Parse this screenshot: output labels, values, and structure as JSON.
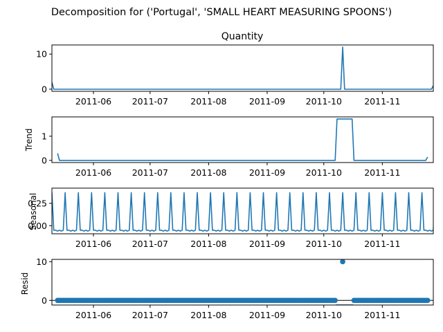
{
  "figure_title": "Decomposition for ('Portugal', 'SMALL HEART MEASURING SPOONS')",
  "colors": {
    "line": "#1f77b4",
    "axis": "#000000",
    "text": "#000000",
    "background": "#ffffff"
  },
  "chart_data": [
    {
      "type": "line",
      "name": "observed",
      "title": "Quantity",
      "ylabel": "",
      "xlim": [
        "2011-05-10",
        "2011-11-28"
      ],
      "ylim": [
        -0.6,
        12.6
      ],
      "yticks": [
        0,
        10
      ],
      "ytick_labels": [
        "0",
        "10"
      ],
      "xticks": [
        "2011-06-01",
        "2011-07-01",
        "2011-08-01",
        "2011-09-01",
        "2011-10-01",
        "2011-11-01"
      ],
      "xtick_labels": [
        "2011-06",
        "2011-07",
        "2011-08",
        "2011-09",
        "2011-10",
        "2011-11"
      ],
      "series": [
        {
          "name": "Quantity",
          "x": [
            "2011-05-10",
            "2011-05-11",
            "2011-10-10",
            "2011-10-11",
            "2011-10-12",
            "2011-11-27",
            "2011-11-28"
          ],
          "values": [
            2,
            0,
            0,
            12,
            0,
            0,
            1
          ]
        }
      ]
    },
    {
      "type": "line",
      "name": "trend",
      "title": "",
      "ylabel": "Trend",
      "xlim": [
        "2011-05-10",
        "2011-11-28"
      ],
      "ylim": [
        -0.09,
        1.8
      ],
      "yticks": [
        0,
        1
      ],
      "ytick_labels": [
        "0",
        "1"
      ],
      "xticks": [
        "2011-06-01",
        "2011-07-01",
        "2011-08-01",
        "2011-09-01",
        "2011-10-01",
        "2011-11-01"
      ],
      "xtick_labels": [
        "2011-06",
        "2011-07",
        "2011-08",
        "2011-09",
        "2011-10",
        "2011-11"
      ],
      "series": [
        {
          "name": "Trend",
          "x": [
            "2011-05-13",
            "2011-05-14",
            "2011-10-07",
            "2011-10-08",
            "2011-10-16",
            "2011-10-17",
            "2011-11-24",
            "2011-11-25"
          ],
          "values": [
            0.29,
            0,
            0,
            1.71,
            1.71,
            0,
            0,
            0.14
          ]
        }
      ]
    },
    {
      "type": "line",
      "name": "seasonal",
      "title": "",
      "ylabel": "Seasonal",
      "xlim": [
        "2011-05-10",
        "2011-11-28"
      ],
      "ylim": [
        -0.09,
        0.42
      ],
      "yticks": [
        0.0,
        0.25
      ],
      "ytick_labels": [
        "0.00",
        "0.25"
      ],
      "xticks": [
        "2011-06-01",
        "2011-07-01",
        "2011-08-01",
        "2011-09-01",
        "2011-10-01",
        "2011-11-01"
      ],
      "xtick_labels": [
        "2011-06",
        "2011-07",
        "2011-08",
        "2011-09",
        "2011-10",
        "2011-11"
      ],
      "period_days": 7,
      "first_peak": "2011-05-17",
      "peak_value": 0.37,
      "base_values": [
        -0.05,
        -0.05,
        -0.06,
        -0.05,
        -0.06,
        -0.05
      ],
      "series": [
        {
          "name": "Seasonal"
        }
      ]
    },
    {
      "type": "scatter",
      "name": "resid",
      "title": "",
      "ylabel": "Resid",
      "xlim": [
        "2011-05-10",
        "2011-11-28"
      ],
      "ylim": [
        -1.2,
        10.6
      ],
      "yticks": [
        0,
        10
      ],
      "ytick_labels": [
        "0",
        "10"
      ],
      "xticks": [
        "2011-06-01",
        "2011-07-01",
        "2011-08-01",
        "2011-09-01",
        "2011-10-01",
        "2011-11-01"
      ],
      "xtick_labels": [
        "2011-06",
        "2011-07",
        "2011-08",
        "2011-09",
        "2011-10",
        "2011-11"
      ],
      "zero_line": true,
      "range_start": "2011-05-13",
      "range_end": "2011-11-25",
      "dip_start": "2011-10-08",
      "dip_end": "2011-10-16",
      "dip_value": -1.7,
      "outlier_date": "2011-10-11",
      "outlier_value": 10,
      "baseline_value": 0,
      "series": [
        {
          "name": "Resid"
        }
      ]
    }
  ]
}
